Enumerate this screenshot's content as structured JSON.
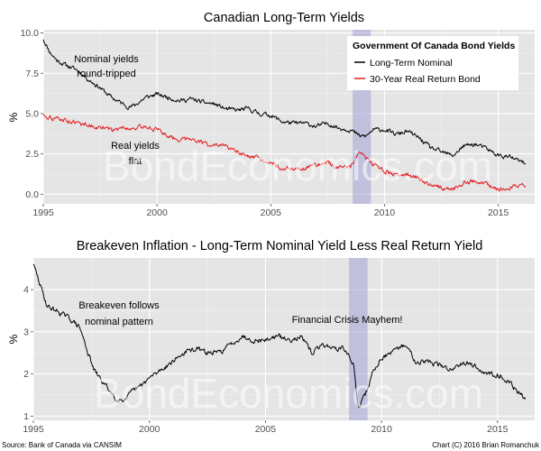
{
  "watermark": "BondEconomics.com",
  "source_note": "Source: Bank of Canada via CANSIM",
  "credit_note": "Chart (C) 2016 Brian Romanchuk",
  "chart_data": [
    {
      "type": "line",
      "title": "Canadian Long-Term Yields",
      "xlabel": "",
      "ylabel": "%",
      "xlim": [
        1995.0,
        2016.6
      ],
      "ylim": [
        -0.6,
        10.2
      ],
      "xticks": [
        1995,
        2000,
        2005,
        2010,
        2015
      ],
      "yticks": [
        0.0,
        2.5,
        5.0,
        7.5,
        10.0
      ],
      "ytick_labels": [
        "0.0",
        "2.5",
        "5.0",
        "7.5",
        "10.0"
      ],
      "shaded_period": {
        "label": "Financial Crisis",
        "x": [
          2008.6,
          2009.4
        ]
      },
      "legend": {
        "title": "Government Of Canada Bond Yields",
        "position": "top-right"
      },
      "series": [
        {
          "name": "Long-Term Nominal",
          "color": "#000000",
          "x": [
            1995.0,
            1995.3,
            1995.6,
            1996.0,
            1996.5,
            1997.0,
            1997.5,
            1998.0,
            1998.5,
            1998.8,
            1999.0,
            1999.5,
            2000.0,
            2000.5,
            2001.0,
            2001.5,
            2002.0,
            2002.5,
            2003.0,
            2003.5,
            2004.0,
            2004.5,
            2005.0,
            2005.5,
            2006.0,
            2006.5,
            2007.0,
            2007.5,
            2008.0,
            2008.5,
            2008.9,
            2009.2,
            2009.5,
            2010.0,
            2010.5,
            2011.0,
            2011.5,
            2012.0,
            2012.5,
            2013.0,
            2013.5,
            2014.0,
            2014.5,
            2015.0,
            2015.5,
            2016.0,
            2016.2
          ],
          "values": [
            9.6,
            8.8,
            8.3,
            8.0,
            7.7,
            7.1,
            6.6,
            6.0,
            5.6,
            5.4,
            5.5,
            6.0,
            6.2,
            6.0,
            5.8,
            5.9,
            5.7,
            5.6,
            5.3,
            5.2,
            5.3,
            5.0,
            4.9,
            4.5,
            4.4,
            4.4,
            4.2,
            4.4,
            4.1,
            4.0,
            3.6,
            3.6,
            4.0,
            4.0,
            3.7,
            3.9,
            3.5,
            2.9,
            2.6,
            2.4,
            3.0,
            3.1,
            2.8,
            2.4,
            2.3,
            2.0,
            1.9
          ]
        },
        {
          "name": "30-Year Real Return Bond",
          "color": "#e31a1c",
          "x": [
            1995.0,
            1995.5,
            1996.0,
            1996.5,
            1997.0,
            1997.5,
            1998.0,
            1998.5,
            1999.0,
            1999.5,
            2000.0,
            2000.5,
            2001.0,
            2001.5,
            2002.0,
            2002.5,
            2003.0,
            2003.5,
            2004.0,
            2004.5,
            2005.0,
            2005.5,
            2006.0,
            2006.5,
            2007.0,
            2007.5,
            2008.0,
            2008.5,
            2008.9,
            2009.2,
            2009.5,
            2010.0,
            2010.5,
            2011.0,
            2011.5,
            2012.0,
            2012.5,
            2013.0,
            2013.5,
            2014.0,
            2014.5,
            2015.0,
            2015.5,
            2016.0,
            2016.2
          ],
          "values": [
            4.9,
            4.7,
            4.6,
            4.4,
            4.3,
            4.1,
            4.0,
            4.1,
            4.1,
            4.2,
            4.0,
            3.6,
            3.4,
            3.5,
            3.2,
            3.0,
            3.0,
            2.6,
            2.3,
            2.2,
            2.0,
            1.6,
            1.6,
            1.6,
            1.8,
            2.0,
            1.6,
            1.7,
            2.7,
            2.2,
            1.8,
            1.4,
            1.2,
            1.2,
            1.0,
            0.6,
            0.4,
            0.3,
            0.7,
            0.8,
            0.6,
            0.3,
            0.4,
            0.6,
            0.5
          ]
        }
      ],
      "annotations": [
        {
          "text": "Nominal yields",
          "x": 1998.6,
          "y": 8.0
        },
        {
          "text": "round-tripped",
          "x": 1998.6,
          "y": 7.3
        },
        {
          "text": "Real yields",
          "x": 1998.6,
          "y": 2.7
        },
        {
          "text": "flat",
          "x": 1998.6,
          "y": 1.9
        }
      ]
    },
    {
      "type": "line",
      "title": "Breakeven Inflation - Long-Term Nominal Yield Less Real Return Yield",
      "xlabel": "",
      "ylabel": "%",
      "xlim": [
        1995.0,
        2016.6
      ],
      "ylim": [
        0.9,
        4.75
      ],
      "xticks": [
        1995,
        2000,
        2005,
        2010,
        2015
      ],
      "yticks": [
        1,
        2,
        3,
        4
      ],
      "ytick_labels": [
        "1",
        "2",
        "3",
        "4"
      ],
      "shaded_period": {
        "label": "Financial Crisis",
        "x": [
          2008.6,
          2009.4
        ]
      },
      "series": [
        {
          "name": "Breakeven Inflation",
          "color": "#000000",
          "x": [
            1995.0,
            1995.3,
            1995.6,
            1996.0,
            1996.3,
            1996.6,
            1997.0,
            1997.3,
            1997.6,
            1998.0,
            1998.3,
            1998.6,
            1999.0,
            1999.3,
            1999.6,
            2000.0,
            2000.5,
            2001.0,
            2001.5,
            2002.0,
            2002.5,
            2003.0,
            2003.5,
            2004.0,
            2004.5,
            2005.0,
            2005.5,
            2006.0,
            2006.5,
            2007.0,
            2007.5,
            2008.0,
            2008.4,
            2008.8,
            2009.0,
            2009.3,
            2009.6,
            2010.0,
            2010.5,
            2011.0,
            2011.5,
            2012.0,
            2012.5,
            2013.0,
            2013.5,
            2014.0,
            2014.5,
            2015.0,
            2015.5,
            2016.0,
            2016.2
          ],
          "values": [
            4.6,
            4.1,
            3.6,
            3.5,
            3.4,
            3.3,
            3.1,
            2.6,
            2.1,
            1.8,
            1.6,
            1.4,
            1.4,
            1.6,
            1.7,
            1.9,
            2.1,
            2.3,
            2.5,
            2.6,
            2.5,
            2.5,
            2.7,
            2.9,
            2.8,
            2.8,
            2.9,
            2.8,
            2.9,
            2.5,
            2.7,
            2.6,
            2.6,
            2.2,
            1.2,
            1.5,
            2.0,
            2.4,
            2.5,
            2.7,
            2.3,
            2.3,
            2.2,
            2.1,
            2.3,
            2.2,
            2.0,
            2.0,
            1.8,
            1.5,
            1.4
          ]
        }
      ],
      "annotations": [
        {
          "text": "Breakeven follows",
          "x": 1998.8,
          "y": 3.55
        },
        {
          "text": "nominal pattern",
          "x": 1998.8,
          "y": 3.1
        },
        {
          "text": "Financial Crisis Mayhem!",
          "x": 2008.9,
          "y": 3.3
        }
      ]
    }
  ]
}
